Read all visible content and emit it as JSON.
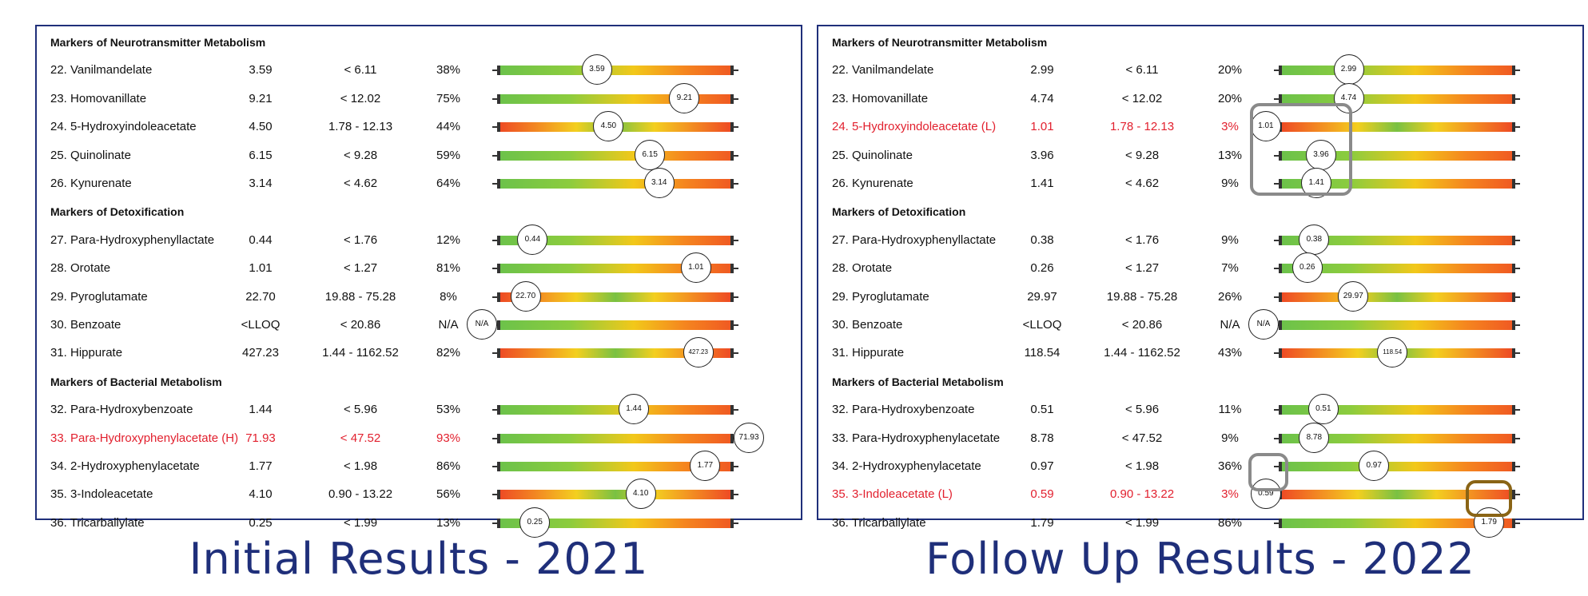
{
  "panels": [
    {
      "caption": "Initial Results - 2021",
      "sections": [
        {
          "title": "Markers of Neurotransmitter Metabolism",
          "rows": [
            {
              "name": "22. Vanilmandelate",
              "value": "3.59",
              "range": "< 6.11",
              "pct": "38%",
              "marker": "3.59",
              "gradient": "green-red",
              "level": 0.42,
              "flag": false
            },
            {
              "name": "23. Homovanillate",
              "value": "9.21",
              "range": "< 12.02",
              "pct": "75%",
              "marker": "9.21",
              "gradient": "green-red",
              "level": 0.8,
              "flag": false
            },
            {
              "name": "24. 5-Hydroxyindoleacetate",
              "value": "4.50",
              "range": "1.78 - 12.13",
              "pct": "44%",
              "marker": "4.50",
              "gradient": "red-green-red",
              "level": 0.47,
              "flag": false
            },
            {
              "name": "25. Quinolinate",
              "value": "6.15",
              "range": "< 9.28",
              "pct": "59%",
              "marker": "6.15",
              "gradient": "green-red",
              "level": 0.65,
              "flag": false
            },
            {
              "name": "26. Kynurenate",
              "value": "3.14",
              "range": "< 4.62",
              "pct": "64%",
              "marker": "3.14",
              "gradient": "green-red",
              "level": 0.69,
              "flag": false
            }
          ]
        },
        {
          "title": "Markers of Detoxification",
          "rows": [
            {
              "name": "27. Para-Hydroxyphenyllactate",
              "value": "0.44",
              "range": "< 1.76",
              "pct": "12%",
              "marker": "0.44",
              "gradient": "green-red",
              "level": 0.14,
              "flag": false
            },
            {
              "name": "28. Orotate",
              "value": "1.01",
              "range": "< 1.27",
              "pct": "81%",
              "marker": "1.01",
              "gradient": "green-red",
              "level": 0.85,
              "flag": false
            },
            {
              "name": "29. Pyroglutamate",
              "value": "22.70",
              "range": "19.88 - 75.28",
              "pct": "8%",
              "marker": "22.70",
              "gradient": "red-green-red",
              "level": 0.11,
              "flag": false
            },
            {
              "name": "30. Benzoate",
              "value": "<LLOQ",
              "range": "< 20.86",
              "pct": "N/A",
              "marker": "N/A",
              "gradient": "green-red",
              "level": -0.08,
              "flag": false
            },
            {
              "name": "31. Hippurate",
              "value": "427.23",
              "range": "1.44 - 1162.52",
              "pct": "82%",
              "marker": "427.23",
              "gradient": "red-green-red",
              "level": 0.86,
              "flag": false
            }
          ]
        },
        {
          "title": "Markers of Bacterial Metabolism",
          "rows": [
            {
              "name": "32. Para-Hydroxybenzoate",
              "value": "1.44",
              "range": "< 5.96",
              "pct": "53%",
              "marker": "1.44",
              "gradient": "green-red",
              "level": 0.58,
              "flag": false
            },
            {
              "name": "33. Para-Hydroxyphenylacetate (H)",
              "value": "71.93",
              "range": "< 47.52",
              "pct": "93%",
              "marker": "71.93",
              "gradient": "green-red",
              "level": 1.08,
              "flag": true
            },
            {
              "name": "34. 2-Hydroxyphenylacetate",
              "value": "1.77",
              "range": "< 1.98",
              "pct": "86%",
              "marker": "1.77",
              "gradient": "green-red",
              "level": 0.89,
              "flag": false
            },
            {
              "name": "35. 3-Indoleacetate",
              "value": "4.10",
              "range": "0.90 - 13.22",
              "pct": "56%",
              "marker": "4.10",
              "gradient": "red-green-red",
              "level": 0.61,
              "flag": false
            },
            {
              "name": "36. Tricarballylate",
              "value": "0.25",
              "range": "< 1.99",
              "pct": "13%",
              "marker": "0.25",
              "gradient": "green-red",
              "level": 0.15,
              "flag": false
            }
          ]
        }
      ]
    },
    {
      "caption": "Follow Up Results - 2022",
      "sections": [
        {
          "title": "Markers of Neurotransmitter Metabolism",
          "rows": [
            {
              "name": "22. Vanilmandelate",
              "value": "2.99",
              "range": "< 6.11",
              "pct": "20%",
              "marker": "2.99",
              "gradient": "green-red",
              "level": 0.29,
              "flag": false
            },
            {
              "name": "23. Homovanillate",
              "value": "4.74",
              "range": "< 12.02",
              "pct": "20%",
              "marker": "4.74",
              "gradient": "green-red",
              "level": 0.29,
              "flag": false
            },
            {
              "name": "24. 5-Hydroxyindoleacetate (L)",
              "value": "1.01",
              "range": "1.78 - 12.13",
              "pct": "3%",
              "marker": "1.01",
              "gradient": "red-green-red",
              "level": -0.07,
              "flag": true
            },
            {
              "name": "25. Quinolinate",
              "value": "3.96",
              "range": "< 9.28",
              "pct": "13%",
              "marker": "3.96",
              "gradient": "green-red",
              "level": 0.17,
              "flag": false
            },
            {
              "name": "26. Kynurenate",
              "value": "1.41",
              "range": "< 4.62",
              "pct": "9%",
              "marker": "1.41",
              "gradient": "green-red",
              "level": 0.15,
              "flag": false
            }
          ]
        },
        {
          "title": "Markers of Detoxification",
          "rows": [
            {
              "name": "27. Para-Hydroxyphenyllactate",
              "value": "0.38",
              "range": "< 1.76",
              "pct": "9%",
              "marker": "0.38",
              "gradient": "green-red",
              "level": 0.14,
              "flag": false
            },
            {
              "name": "28. Orotate",
              "value": "0.26",
              "range": "< 1.27",
              "pct": "7%",
              "marker": "0.26",
              "gradient": "green-red",
              "level": 0.11,
              "flag": false
            },
            {
              "name": "29. Pyroglutamate",
              "value": "29.97",
              "range": "19.88 - 75.28",
              "pct": "26%",
              "marker": "29.97",
              "gradient": "red-green-red",
              "level": 0.31,
              "flag": false
            },
            {
              "name": "30. Benzoate",
              "value": "<LLOQ",
              "range": "< 20.86",
              "pct": "N/A",
              "marker": "N/A",
              "gradient": "green-red",
              "level": -0.08,
              "flag": false
            },
            {
              "name": "31. Hippurate",
              "value": "118.54",
              "range": "1.44 - 1162.52",
              "pct": "43%",
              "marker": "118.54",
              "gradient": "red-green-red",
              "level": 0.48,
              "flag": false
            }
          ]
        },
        {
          "title": "Markers of Bacterial Metabolism",
          "rows": [
            {
              "name": "32. Para-Hydroxybenzoate",
              "value": "0.51",
              "range": "< 5.96",
              "pct": "11%",
              "marker": "0.51",
              "gradient": "green-red",
              "level": 0.18,
              "flag": false
            },
            {
              "name": "33. Para-Hydroxyphenylacetate",
              "value": "8.78",
              "range": "< 47.52",
              "pct": "9%",
              "marker": "8.78",
              "gradient": "green-red",
              "level": 0.14,
              "flag": false
            },
            {
              "name": "34. 2-Hydroxyphenylacetate",
              "value": "0.97",
              "range": "< 1.98",
              "pct": "36%",
              "marker": "0.97",
              "gradient": "green-red",
              "level": 0.4,
              "flag": false
            },
            {
              "name": "35. 3-Indoleacetate (L)",
              "value": "0.59",
              "range": "0.90 - 13.22",
              "pct": "3%",
              "marker": "0.59",
              "gradient": "red-green-red",
              "level": -0.07,
              "flag": true
            },
            {
              "name": "36. Tricarballylate",
              "value": "1.79",
              "range": "< 1.99",
              "pct": "86%",
              "marker": "1.79",
              "gradient": "green-red",
              "level": 0.9,
              "flag": false
            }
          ]
        }
      ]
    }
  ],
  "colors": {
    "frame": "#1f2f7a",
    "flag_text": "#e2202e",
    "highlight_gray": "#8a8a8a",
    "highlight_brown": "#8a6415"
  }
}
